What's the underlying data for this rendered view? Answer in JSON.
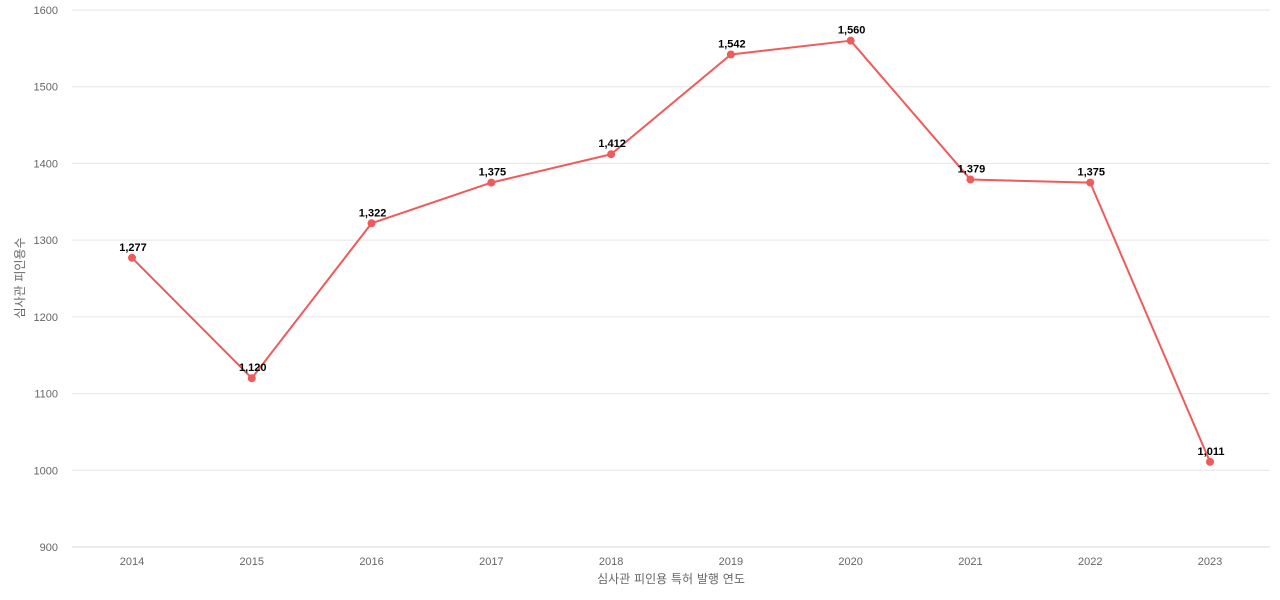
{
  "chart_data": {
    "type": "line",
    "title": "",
    "xlabel": "심사관 피인용 특허 발행 연도",
    "ylabel": "심사관 피인용수",
    "x": [
      "2014",
      "2015",
      "2016",
      "2017",
      "2018",
      "2019",
      "2020",
      "2021",
      "2022",
      "2023"
    ],
    "series": [
      {
        "values": [
          1277,
          1120,
          1322,
          1375,
          1412,
          1542,
          1560,
          1379,
          1375,
          1011
        ],
        "labels": [
          "1,277",
          "1,120",
          "1,322",
          "1,375",
          "1,412",
          "1,542",
          "1,560",
          "1,379",
          "1,375",
          "1,011"
        ],
        "color": "#ef5a5a"
      }
    ],
    "ylim": [
      900,
      1600
    ],
    "yticks": [
      "900",
      "1000",
      "1100",
      "1200",
      "1300",
      "1400",
      "1500",
      "1600"
    ],
    "grid": true,
    "legend": "none"
  }
}
